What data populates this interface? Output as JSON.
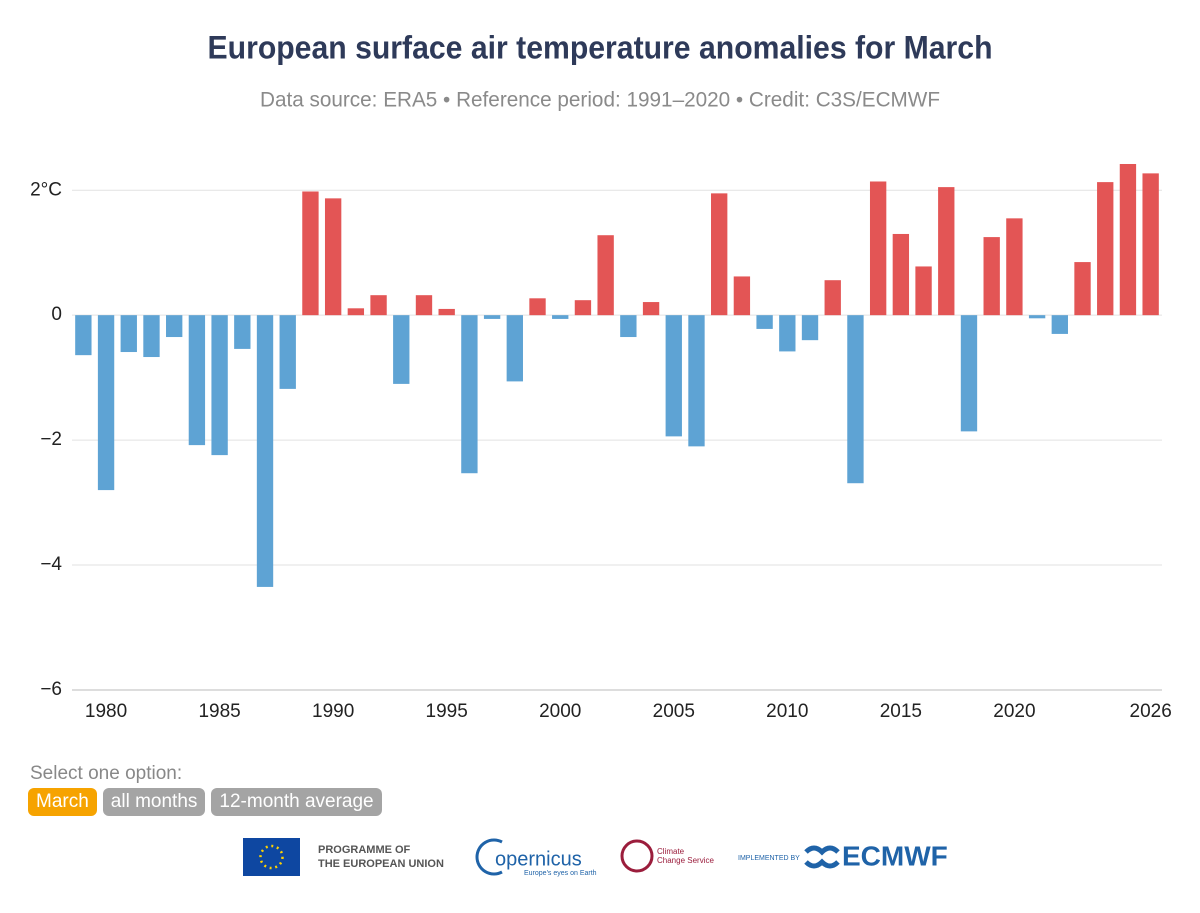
{
  "chart_data": {
    "type": "bar",
    "title": "European surface air temperature anomalies for March",
    "subtitle": "Data source: ERA5 • Reference period: 1991–2020 • Credit: C3S/ECMWF",
    "x": [
      1979,
      1980,
      1981,
      1982,
      1983,
      1984,
      1985,
      1986,
      1987,
      1988,
      1989,
      1990,
      1991,
      1992,
      1993,
      1994,
      1995,
      1996,
      1997,
      1998,
      1999,
      2000,
      2001,
      2002,
      2003,
      2004,
      2005,
      2006,
      2007,
      2008,
      2009,
      2010,
      2011,
      2012,
      2013,
      2014,
      2015,
      2016,
      2017,
      2018,
      2019,
      2020,
      2021,
      2022,
      2023,
      2024,
      2025,
      2026
    ],
    "values": [
      -0.64,
      -2.8,
      -0.59,
      -0.67,
      -0.35,
      -2.08,
      -2.24,
      -0.54,
      -4.35,
      -1.18,
      1.98,
      1.87,
      0.11,
      0.32,
      -1.1,
      0.32,
      0.1,
      -2.53,
      -0.06,
      -1.06,
      0.27,
      -0.06,
      0.24,
      1.28,
      -0.35,
      0.21,
      -1.94,
      -2.1,
      1.95,
      0.62,
      -0.22,
      -0.58,
      -0.4,
      0.56,
      -2.69,
      2.14,
      1.3,
      0.78,
      2.05,
      -1.86,
      1.25,
      1.55,
      -0.05,
      -0.3,
      0.85,
      2.13,
      2.42,
      2.27
    ],
    "positive_color": "#e35555",
    "negative_color": "#5ea3d4",
    "xlim": [
      1978.5,
      2026.5
    ],
    "xticks": [
      1980,
      1985,
      1990,
      1995,
      2000,
      2005,
      2010,
      2015,
      2020,
      2026
    ],
    "ylim": [
      -6,
      2.5
    ],
    "yticks": [
      {
        "value": -6,
        "label": "−6"
      },
      {
        "value": -4,
        "label": "−4"
      },
      {
        "value": -2,
        "label": "−2"
      },
      0,
      {
        "value": 2,
        "label": "2°C"
      }
    ],
    "grid": true
  },
  "controls": {
    "label": "Select one option:",
    "options": [
      "March",
      "all months",
      "12-month average"
    ],
    "selected": 0
  },
  "footer": {
    "eu": [
      "PROGRAMME OF",
      "THE EUROPEAN UNION"
    ],
    "copernicus": "opernicus",
    "copernicus_tagline": "Europe's eyes on Earth",
    "c3s": [
      "Climate",
      "Change Service"
    ],
    "implemented_by": "IMPLEMENTED BY",
    "ecmwf": "ECMWF"
  }
}
